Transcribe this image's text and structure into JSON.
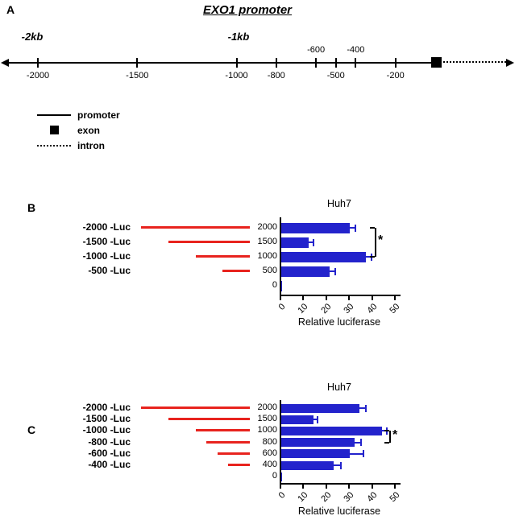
{
  "colors": {
    "bar": "#2323cc",
    "construct": "#e8231e",
    "axis": "#000000"
  },
  "panelA": {
    "label": "A",
    "title": "EXO1 promoter",
    "kb_labels": [
      {
        "text": "-2kb",
        "value": -2000
      },
      {
        "text": "-1kb",
        "value": -1000
      }
    ],
    "ticks": [
      {
        "value": -2000,
        "label": "-2000",
        "side": "below"
      },
      {
        "value": -1500,
        "label": "-1500",
        "side": "below"
      },
      {
        "value": -1000,
        "label": "-1000",
        "side": "below"
      },
      {
        "value": -800,
        "label": "-800",
        "side": "below"
      },
      {
        "value": -600,
        "label": "-600",
        "side": "above"
      },
      {
        "value": -500,
        "label": "-500",
        "side": "below"
      },
      {
        "value": -400,
        "label": "-400",
        "side": "above"
      },
      {
        "value": -200,
        "label": "-200",
        "side": "below"
      }
    ],
    "legend": [
      {
        "symbol": "solid-line",
        "label": "promoter"
      },
      {
        "symbol": "filled-square",
        "label": "exon"
      },
      {
        "symbol": "dotted-line",
        "label": "intron"
      }
    ]
  },
  "panelB": {
    "label": "B",
    "constructs": [
      {
        "label": "-2000 -Luc",
        "size": 2000
      },
      {
        "label": "-1500 -Luc",
        "size": 1500
      },
      {
        "label": "-1000 -Luc",
        "size": 1000
      },
      {
        "label": "-500 -Luc",
        "size": 500
      }
    ]
  },
  "panelC": {
    "label": "C",
    "constructs": [
      {
        "label": "-2000 -Luc",
        "size": 2000
      },
      {
        "label": "-1500 -Luc",
        "size": 1500
      },
      {
        "label": "-1000 -Luc",
        "size": 1000
      },
      {
        "label": "-800 -Luc",
        "size": 800
      },
      {
        "label": "-600 -Luc",
        "size": 600
      },
      {
        "label": "-400 -Luc",
        "size": 400
      }
    ]
  },
  "chart_data": [
    {
      "panel": "B",
      "type": "bar",
      "orientation": "horizontal",
      "title": "Huh7",
      "categories": [
        "2000",
        "1500",
        "1000",
        "500",
        "0"
      ],
      "values": [
        30,
        12,
        37,
        21,
        0.5
      ],
      "errors": [
        2.5,
        2,
        2.5,
        2.5,
        0
      ],
      "xlabel": "Relative luciferase",
      "xlim": [
        0,
        50
      ],
      "xticks": [
        0,
        10,
        20,
        30,
        40,
        50
      ],
      "grid": false,
      "legend_position": "none",
      "significance": {
        "from": "2000",
        "to": "1000",
        "label": "*"
      }
    },
    {
      "panel": "C",
      "type": "bar",
      "orientation": "horizontal",
      "title": "Huh7",
      "categories": [
        "2000",
        "1500",
        "1000",
        "800",
        "600",
        "400",
        "0"
      ],
      "values": [
        34,
        14,
        44,
        32,
        30,
        23,
        0.5
      ],
      "errors": [
        3,
        2,
        2,
        3,
        6,
        3,
        0
      ],
      "xlabel": "Relative luciferase",
      "xlim": [
        0,
        50
      ],
      "xticks": [
        0,
        10,
        20,
        30,
        40,
        50
      ],
      "grid": false,
      "legend_position": "none",
      "significance": {
        "from": "1000",
        "to": "800",
        "label": "*"
      }
    }
  ]
}
